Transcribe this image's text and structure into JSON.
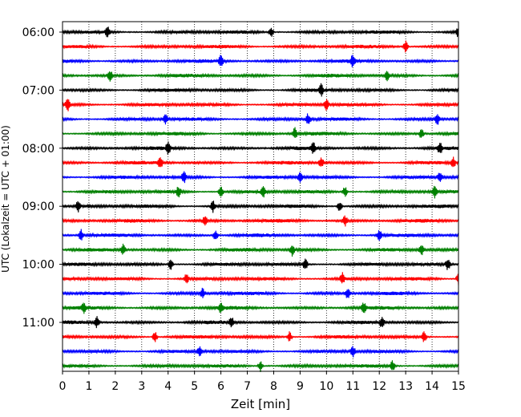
{
  "chart_data": {
    "type": "line",
    "xlabel": "Zeit  [min]",
    "ylabel": "UTC (Lokalzeit = UTC + 01:00)",
    "xlim": [
      0,
      15
    ],
    "xticks": [
      0,
      1,
      2,
      3,
      4,
      5,
      6,
      7,
      8,
      9,
      10,
      11,
      12,
      13,
      14,
      15
    ],
    "grid": "vertical dotted",
    "trace_minutes": 15,
    "colors": [
      "#000000",
      "#ff0000",
      "#0000ff",
      "#008000"
    ],
    "ytick_labels": [
      "06:00",
      "07:00",
      "08:00",
      "09:00",
      "10:00",
      "11:00"
    ],
    "ytick_trace_index": [
      0,
      4,
      8,
      12,
      16,
      20
    ],
    "traces": [
      {
        "start": "06:00",
        "events": [
          1.7,
          7.9,
          15.0
        ]
      },
      {
        "start": "06:15",
        "events": [
          13.0
        ]
      },
      {
        "start": "06:30",
        "events": [
          6.0,
          11.0
        ]
      },
      {
        "start": "06:45",
        "events": [
          1.8,
          12.3
        ]
      },
      {
        "start": "07:00",
        "events": [
          9.8
        ]
      },
      {
        "start": "07:15",
        "events": [
          0.2,
          10.0
        ]
      },
      {
        "start": "07:30",
        "events": [
          3.9,
          9.3,
          14.2
        ]
      },
      {
        "start": "07:45",
        "events": [
          8.8,
          13.6
        ]
      },
      {
        "start": "08:00",
        "events": [
          4.0,
          9.5,
          14.3
        ]
      },
      {
        "start": "08:15",
        "events": [
          3.7,
          9.8,
          14.8
        ]
      },
      {
        "start": "08:30",
        "events": [
          4.6,
          9.0,
          14.3
        ]
      },
      {
        "start": "08:45",
        "events": [
          4.4,
          6.0,
          7.6,
          10.7,
          14.1
        ]
      },
      {
        "start": "09:00",
        "events": [
          0.6,
          5.7,
          10.5
        ]
      },
      {
        "start": "09:15",
        "events": [
          5.4,
          10.7
        ]
      },
      {
        "start": "09:30",
        "events": [
          0.7,
          5.8,
          12.0
        ]
      },
      {
        "start": "09:45",
        "events": [
          2.3,
          8.7,
          13.6
        ]
      },
      {
        "start": "10:00",
        "events": [
          4.1,
          9.2,
          14.6
        ]
      },
      {
        "start": "10:15",
        "events": [
          4.7,
          10.6,
          15.0
        ]
      },
      {
        "start": "10:30",
        "events": [
          5.3,
          10.8
        ]
      },
      {
        "start": "10:45",
        "events": [
          0.8,
          6.0,
          11.4
        ]
      },
      {
        "start": "11:00",
        "events": [
          1.3,
          6.4,
          12.1
        ]
      },
      {
        "start": "11:15",
        "events": [
          3.5,
          8.6,
          13.7
        ]
      },
      {
        "start": "11:30",
        "events": [
          5.2,
          11.0
        ]
      },
      {
        "start": "11:45",
        "events": [
          7.5,
          12.5
        ]
      }
    ]
  }
}
